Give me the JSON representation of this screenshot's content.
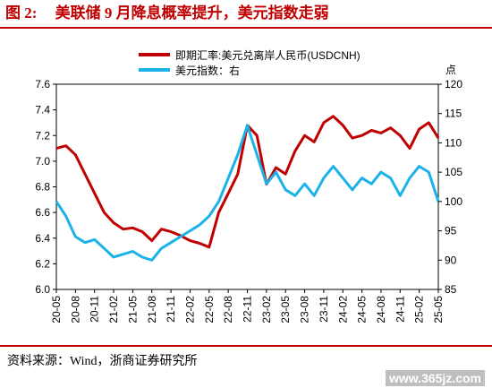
{
  "figure": {
    "number_label": "图 2:",
    "title": "美联储 9 月降息概率提升，美元指数走弱",
    "source": "资料来源：Wind，浙商证券研究所",
    "watermark": "www.365jz.com",
    "accent_color": "#c00000"
  },
  "chart_data": {
    "type": "line",
    "legend_position": "top-center",
    "grid": false,
    "left_axis": {
      "range": [
        6.0,
        7.6
      ],
      "ticks": [
        "6.0",
        "6.2",
        "6.4",
        "6.6",
        "6.8",
        "7.0",
        "7.2",
        "7.4",
        "7.6"
      ]
    },
    "right_axis": {
      "unit_label": "点",
      "range": [
        85,
        120
      ],
      "ticks": [
        "85",
        "90",
        "95",
        "100",
        "105",
        "110",
        "115",
        "120"
      ]
    },
    "x_ticks": [
      "20-05",
      "20-08",
      "20-11",
      "21-02",
      "21-05",
      "21-08",
      "21-11",
      "22-02",
      "22-05",
      "22-08",
      "22-11",
      "23-02",
      "23-05",
      "23-08",
      "23-11",
      "24-02",
      "24-05",
      "24-08",
      "24-11",
      "25-02",
      "25-05"
    ],
    "series": [
      {
        "name": "即期汇率:美元兑离岸人民币(USDCNH)",
        "axis": "left",
        "color": "#c00000",
        "x": [
          0,
          0.5,
          1,
          1.5,
          2,
          2.5,
          3,
          3.5,
          4,
          4.5,
          5,
          5.5,
          6,
          6.5,
          7,
          7.5,
          8,
          8.5,
          9,
          9.5,
          10,
          10.5,
          11,
          11.5,
          12,
          12.5,
          13,
          13.5,
          14,
          14.5,
          15,
          15.5,
          16,
          16.5,
          17,
          17.5,
          18,
          18.5,
          19,
          19.5,
          20
        ],
        "values": [
          7.1,
          7.12,
          7.05,
          6.9,
          6.75,
          6.6,
          6.52,
          6.47,
          6.48,
          6.45,
          6.38,
          6.47,
          6.45,
          6.42,
          6.38,
          6.36,
          6.33,
          6.6,
          6.75,
          6.9,
          7.28,
          7.2,
          6.82,
          6.95,
          6.9,
          7.08,
          7.2,
          7.15,
          7.3,
          7.35,
          7.28,
          7.18,
          7.2,
          7.24,
          7.22,
          7.26,
          7.2,
          7.1,
          7.25,
          7.3,
          7.18
        ]
      },
      {
        "name": "美元指数：右",
        "axis": "right",
        "color": "#1ab2e8",
        "x": [
          0,
          0.5,
          1,
          1.5,
          2,
          2.5,
          3,
          3.5,
          4,
          4.5,
          5,
          5.5,
          6,
          6.5,
          7,
          7.5,
          8,
          8.5,
          9,
          9.5,
          10,
          10.5,
          11,
          11.5,
          12,
          12.5,
          13,
          13.5,
          14,
          14.5,
          15,
          15.5,
          16,
          16.5,
          17,
          17.5,
          18,
          18.5,
          19,
          19.5,
          20
        ],
        "values": [
          100,
          97.5,
          94,
          93,
          93.5,
          92,
          90.5,
          91,
          91.5,
          90.5,
          90,
          92,
          93,
          94,
          95,
          96,
          97.5,
          100,
          104,
          108,
          113,
          108,
          103,
          105,
          102,
          101,
          103,
          101,
          104,
          106,
          104,
          102,
          104,
          103,
          105,
          104,
          101,
          104,
          106,
          105,
          100
        ]
      }
    ]
  }
}
